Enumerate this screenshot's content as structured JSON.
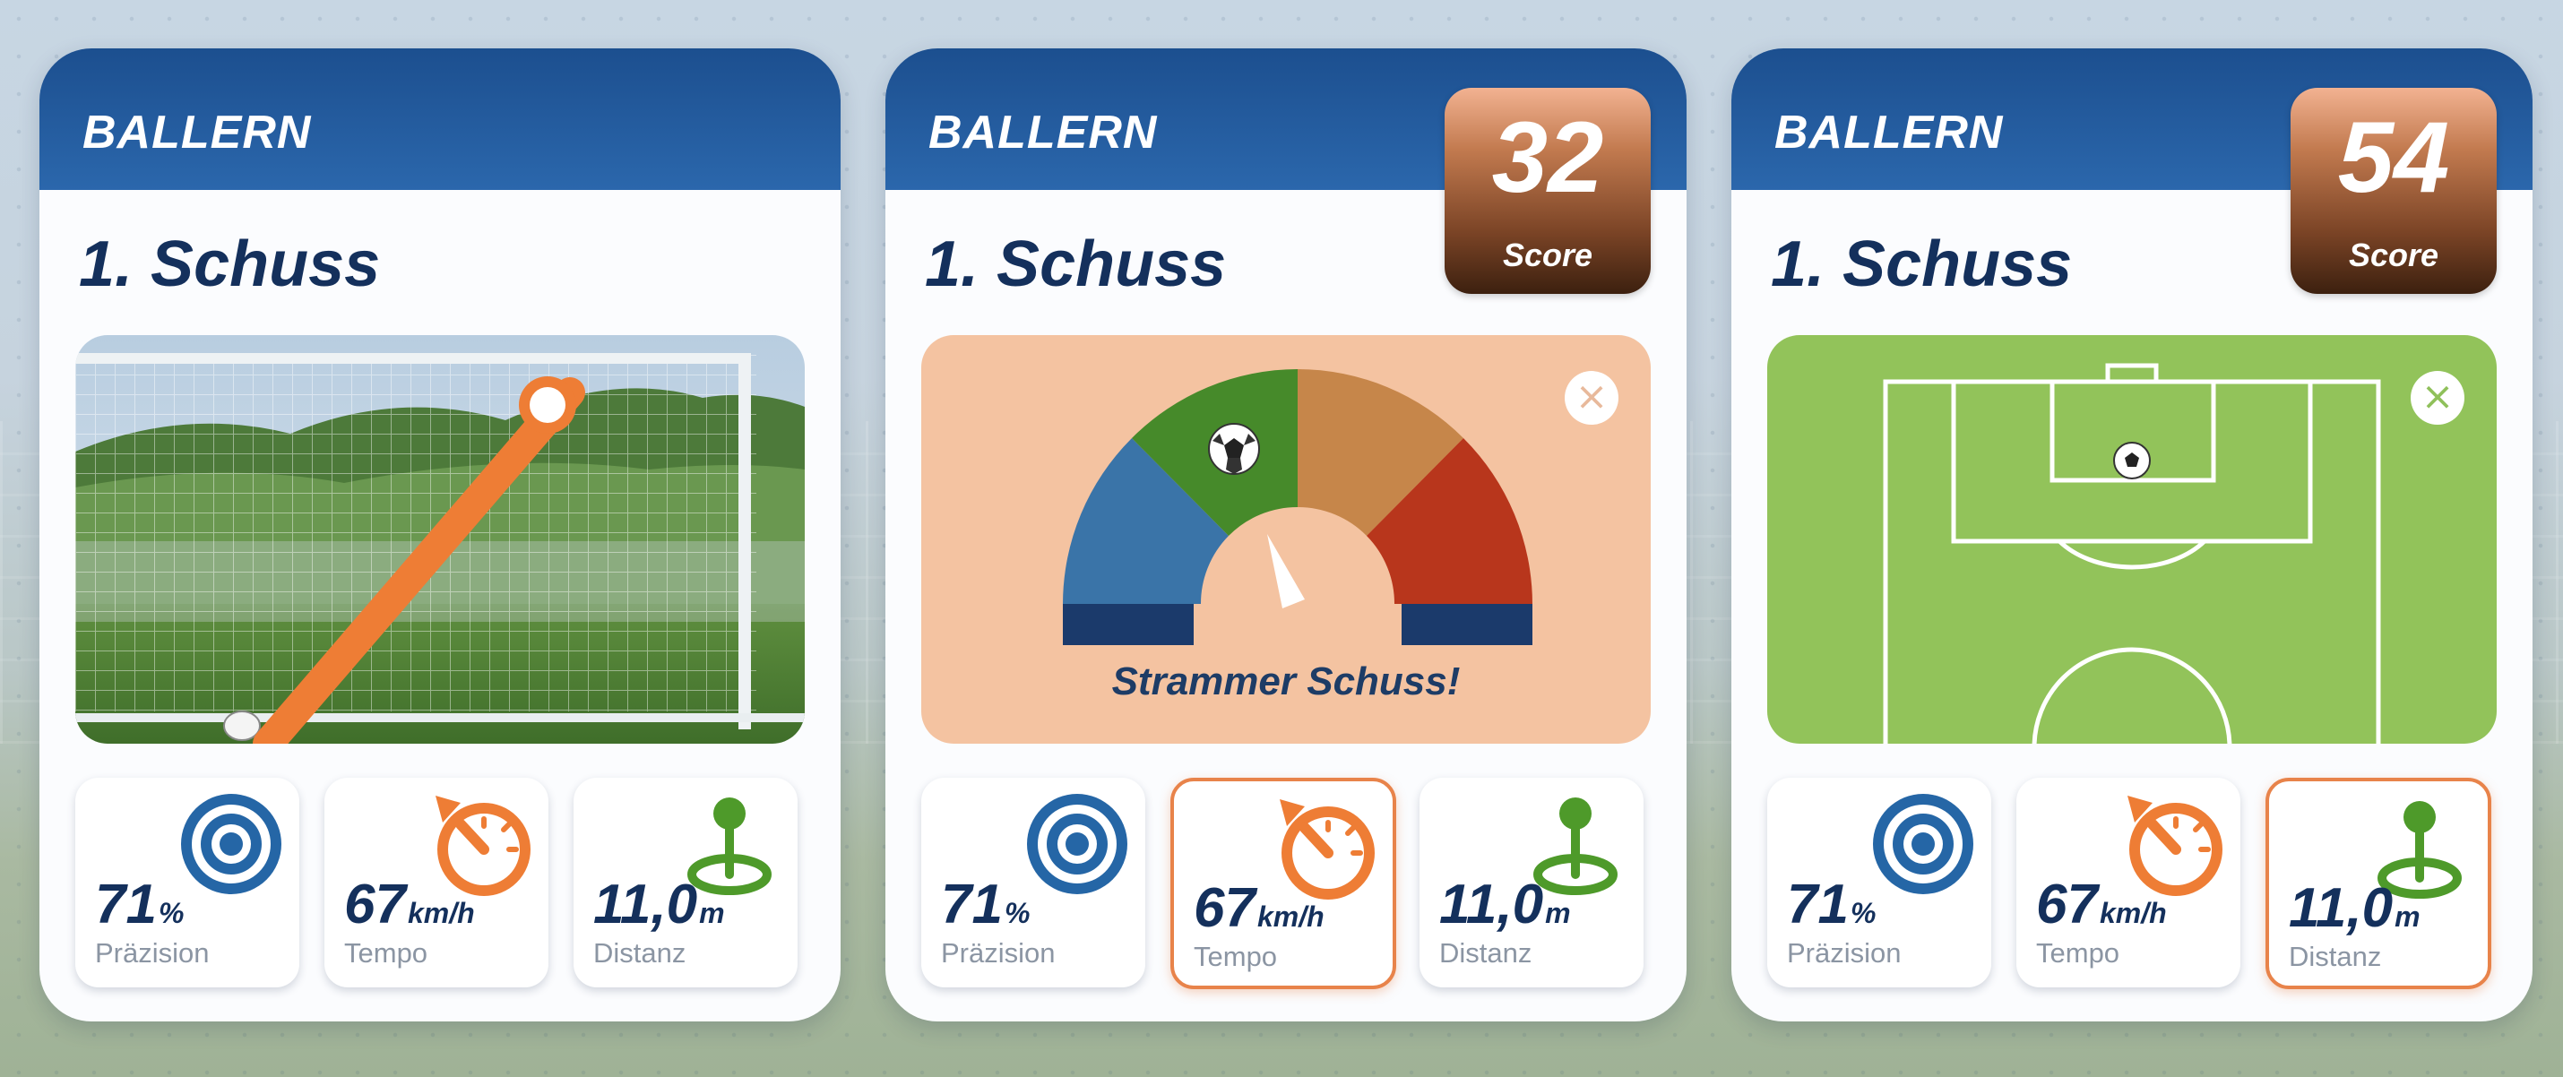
{
  "colors": {
    "header_blue": "#2563a8",
    "title_navy": "#14305c",
    "accent_orange": "#e8834a",
    "gauge_blue": "#3a74a8",
    "gauge_green": "#468a2a",
    "gauge_amber": "#c6864a",
    "gauge_red": "#b8361c",
    "pitch_green": "#92c35a",
    "gauge_panel_bg": "#f4c3a1"
  },
  "cards": [
    {
      "brand": "BALLERN",
      "title": "1. Schuss",
      "panel": "goal-photo",
      "stats": [
        {
          "value": "71",
          "unit": "%",
          "label": "Präzision",
          "icon": "target-icon",
          "active": false
        },
        {
          "value": "67",
          "unit": "km/h",
          "label": "Tempo",
          "icon": "speedometer-icon",
          "active": false
        },
        {
          "value": "11,0",
          "unit": "m",
          "label": "Distanz",
          "icon": "location-pin-icon",
          "active": false
        }
      ]
    },
    {
      "brand": "BALLERN",
      "title": "1. Schuss",
      "score": {
        "value": "32",
        "label": "Score"
      },
      "panel": "speed-gauge",
      "gauge_text": "Strammer Schuss!",
      "close_icon": "close-icon",
      "stats": [
        {
          "value": "71",
          "unit": "%",
          "label": "Präzision",
          "icon": "target-icon",
          "active": false
        },
        {
          "value": "67",
          "unit": "km/h",
          "label": "Tempo",
          "icon": "speedometer-icon",
          "active": true
        },
        {
          "value": "11,0",
          "unit": "m",
          "label": "Distanz",
          "icon": "location-pin-icon",
          "active": false
        }
      ]
    },
    {
      "brand": "BALLERN",
      "title": "1. Schuss",
      "score": {
        "value": "54",
        "label": "Score"
      },
      "panel": "pitch-map",
      "close_icon": "close-icon",
      "stats": [
        {
          "value": "71",
          "unit": "%",
          "label": "Präzision",
          "icon": "target-icon",
          "active": false
        },
        {
          "value": "67",
          "unit": "km/h",
          "label": "Tempo",
          "icon": "speedometer-icon",
          "active": false
        },
        {
          "value": "11,0",
          "unit": "m",
          "label": "Distanz",
          "icon": "location-pin-icon",
          "active": true
        }
      ]
    }
  ]
}
